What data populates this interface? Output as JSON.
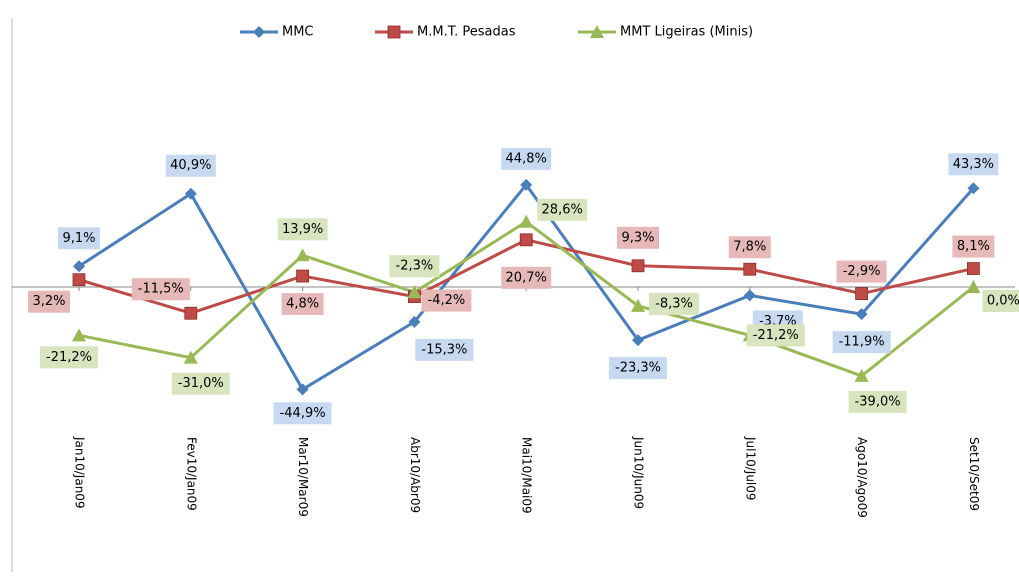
{
  "chart_data": {
    "type": "line",
    "categories": [
      "Jan10/Jan09",
      "Fev10/Jan09",
      "Mar10/Mar09",
      "Abr10/Abr09",
      "Mai10/Mai09",
      "Jun10/Jun09",
      "Jul10/Jul09",
      "Ago10/Ago09",
      "Set10/Set09"
    ],
    "ylim": [
      -100,
      100
    ],
    "series": [
      {
        "name": "MMC",
        "color": "#4a7ebb",
        "label_fill": "#c6d9f1",
        "marker": "diamond",
        "values": [
          9.1,
          40.9,
          -44.9,
          -15.3,
          44.8,
          -23.3,
          -3.7,
          -11.9,
          43.3
        ],
        "value_labels": [
          "9,1%",
          "40,9%",
          "-44,9%",
          "-15,3%",
          "44,8%",
          "-23,3%",
          "-3,7%",
          "-11,9%",
          "43,3%"
        ]
      },
      {
        "name": "M.M.T. Pesadas",
        "color": "#be4b48",
        "label_fill": "#e6b9b8",
        "marker": "square",
        "values": [
          3.2,
          -11.5,
          4.8,
          -4.2,
          20.7,
          9.3,
          7.8,
          -2.9,
          8.1
        ],
        "value_labels": [
          "3,2%",
          "-11,5%",
          "4,8%",
          "-4,2%",
          "20,7%",
          "9,3%",
          "7,8%",
          "-2,9%",
          "8,1%"
        ]
      },
      {
        "name": "MMT Ligeiras (Minis)",
        "color": "#98b954",
        "label_fill": "#d7e4bd",
        "marker": "triangle",
        "values": [
          -21.2,
          -31.0,
          13.9,
          -2.3,
          28.6,
          -8.3,
          -21.2,
          -39.0,
          0.0
        ],
        "value_labels": [
          "-21,2%",
          "-31,0%",
          "13,9%",
          "-2,3%",
          "28,6%",
          "-8,3%",
          "-21,2%",
          "-39,0%",
          "0,0%"
        ]
      }
    ]
  }
}
